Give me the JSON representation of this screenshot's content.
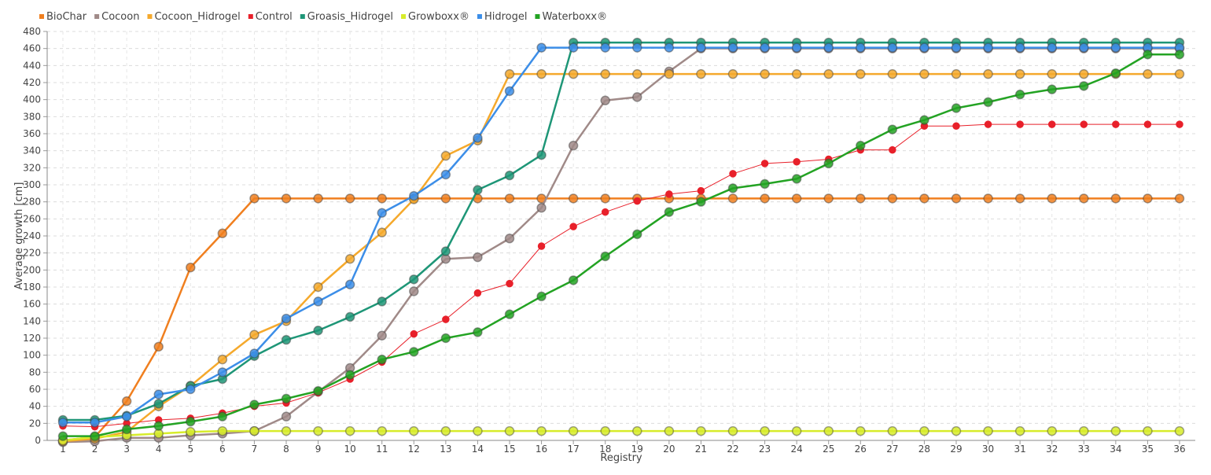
{
  "chart_data": {
    "type": "line",
    "title": "",
    "xlabel": "Registry",
    "ylabel": "Average growth [cm]",
    "ylim": [
      0,
      480
    ],
    "y_ticks": [
      0,
      20,
      40,
      60,
      80,
      100,
      120,
      140,
      160,
      180,
      200,
      220,
      240,
      260,
      280,
      300,
      320,
      340,
      360,
      380,
      400,
      420,
      440,
      460,
      480
    ],
    "x": [
      1,
      2,
      3,
      4,
      5,
      6,
      7,
      8,
      9,
      10,
      11,
      12,
      13,
      14,
      15,
      16,
      17,
      18,
      19,
      20,
      21,
      22,
      23,
      24,
      25,
      26,
      27,
      28,
      29,
      30,
      31,
      32,
      33,
      34,
      35,
      36
    ],
    "grid": true,
    "legend_position": "top-left",
    "series": [
      {
        "name": "BioChar",
        "color": "#f07f1f",
        "values": [
          0,
          4,
          46,
          110,
          203,
          243,
          284,
          284,
          284,
          284,
          284,
          284,
          284,
          284,
          284,
          284,
          284,
          284,
          284,
          284,
          284,
          284,
          284,
          284,
          284,
          284,
          284,
          284,
          284,
          284,
          284,
          284,
          284,
          284,
          284,
          284
        ]
      },
      {
        "name": "Cocoon",
        "color": "#a08a88",
        "values": [
          -2,
          -1,
          3,
          3,
          6,
          8,
          11,
          28,
          57,
          85,
          123,
          175,
          213,
          215,
          237,
          273,
          346,
          399,
          403,
          433,
          460,
          460,
          460,
          460,
          460,
          460,
          460,
          460,
          460,
          460,
          460,
          460,
          460,
          460,
          460,
          460
        ]
      },
      {
        "name": "Cocoon_Hidrogel",
        "color": "#f5a92c",
        "values": [
          -1,
          2,
          10,
          40,
          64,
          95,
          124,
          140,
          180,
          213,
          244,
          283,
          334,
          352,
          430,
          430,
          430,
          430,
          430,
          430,
          430,
          430,
          430,
          430,
          430,
          430,
          430,
          430,
          430,
          430,
          430,
          430,
          430,
          430,
          430,
          430
        ]
      },
      {
        "name": "Control",
        "color": "#e8202a",
        "values": [
          17,
          16,
          20,
          24,
          26,
          32,
          40,
          44,
          56,
          72,
          92,
          125,
          142,
          173,
          184,
          228,
          251,
          268,
          281,
          289,
          293,
          313,
          325,
          327,
          330,
          341,
          341,
          369,
          369,
          371,
          371,
          371,
          371,
          371,
          371,
          371
        ]
      },
      {
        "name": "Groasis_Hidrogel",
        "color": "#1e9677",
        "values": [
          24,
          24,
          29,
          43,
          64,
          72,
          99,
          118,
          129,
          145,
          163,
          189,
          222,
          294,
          311,
          335,
          467,
          467,
          467,
          467,
          467,
          467,
          467,
          467,
          467,
          467,
          467,
          467,
          467,
          467,
          467,
          467,
          467,
          467,
          467,
          467
        ]
      },
      {
        "name": "Growboxx®",
        "color": "#d7ec2a",
        "values": [
          0,
          4,
          6,
          8,
          10,
          11,
          11,
          11,
          11,
          11,
          11,
          11,
          11,
          11,
          11,
          11,
          11,
          11,
          11,
          11,
          11,
          11,
          11,
          11,
          11,
          11,
          11,
          11,
          11,
          11,
          11,
          11,
          11,
          11,
          11,
          11
        ]
      },
      {
        "name": "Hidrogel",
        "color": "#3c8ee8",
        "values": [
          21,
          21,
          28,
          54,
          60,
          80,
          102,
          143,
          163,
          183,
          267,
          287,
          312,
          355,
          410,
          461,
          461,
          461,
          461,
          461,
          461,
          461,
          461,
          461,
          461,
          461,
          461,
          461,
          461,
          461,
          461,
          461,
          461,
          461,
          461,
          461
        ]
      },
      {
        "name": "Waterboxx®",
        "color": "#23a323",
        "values": [
          5,
          5,
          13,
          17,
          22,
          28,
          42,
          49,
          58,
          77,
          95,
          104,
          120,
          127,
          148,
          169,
          188,
          216,
          242,
          268,
          280,
          296,
          301,
          307,
          325,
          346,
          365,
          376,
          390,
          397,
          406,
          412,
          416,
          431,
          453,
          453
        ]
      }
    ]
  }
}
